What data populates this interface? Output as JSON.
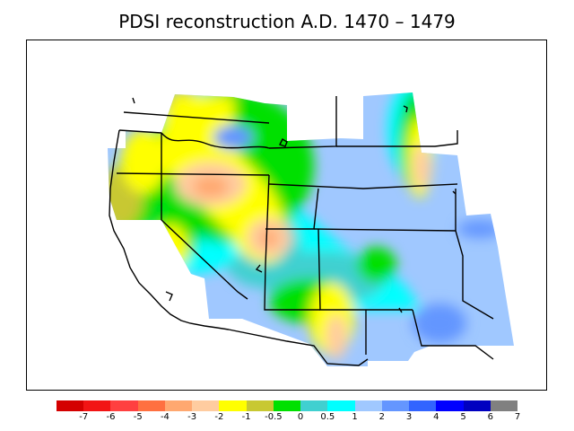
{
  "title": "PDSI reconstruction A.D. 1470 – 1479",
  "legend": {
    "colors": [
      "#d40000",
      "#f21414",
      "#ff4040",
      "#ff7040",
      "#ffa870",
      "#ffcca0",
      "#ffff00",
      "#c8c832",
      "#00e000",
      "#40d0d0",
      "#00ffff",
      "#a0c8ff",
      "#6496ff",
      "#3264ff",
      "#0000ff",
      "#0000c0",
      "#808080"
    ],
    "labels": [
      "-7",
      "-6",
      "-5",
      "-4",
      "-3",
      "-2",
      "-1",
      "-0.5",
      "0",
      "0.5",
      "1",
      "2",
      "3",
      "4",
      "5",
      "6",
      "7"
    ]
  },
  "map": {
    "region": "Western United States",
    "colors": {
      "lightblue": "#a0c8ff",
      "blue": "#6496ff",
      "cyan": "#00ffff",
      "teal": "#40d0d0",
      "green": "#00e000",
      "olive": "#c8c832",
      "yellow": "#ffff00",
      "peach": "#ffcca0",
      "salmon": "#ffa870",
      "orange": "#ff7040"
    }
  }
}
